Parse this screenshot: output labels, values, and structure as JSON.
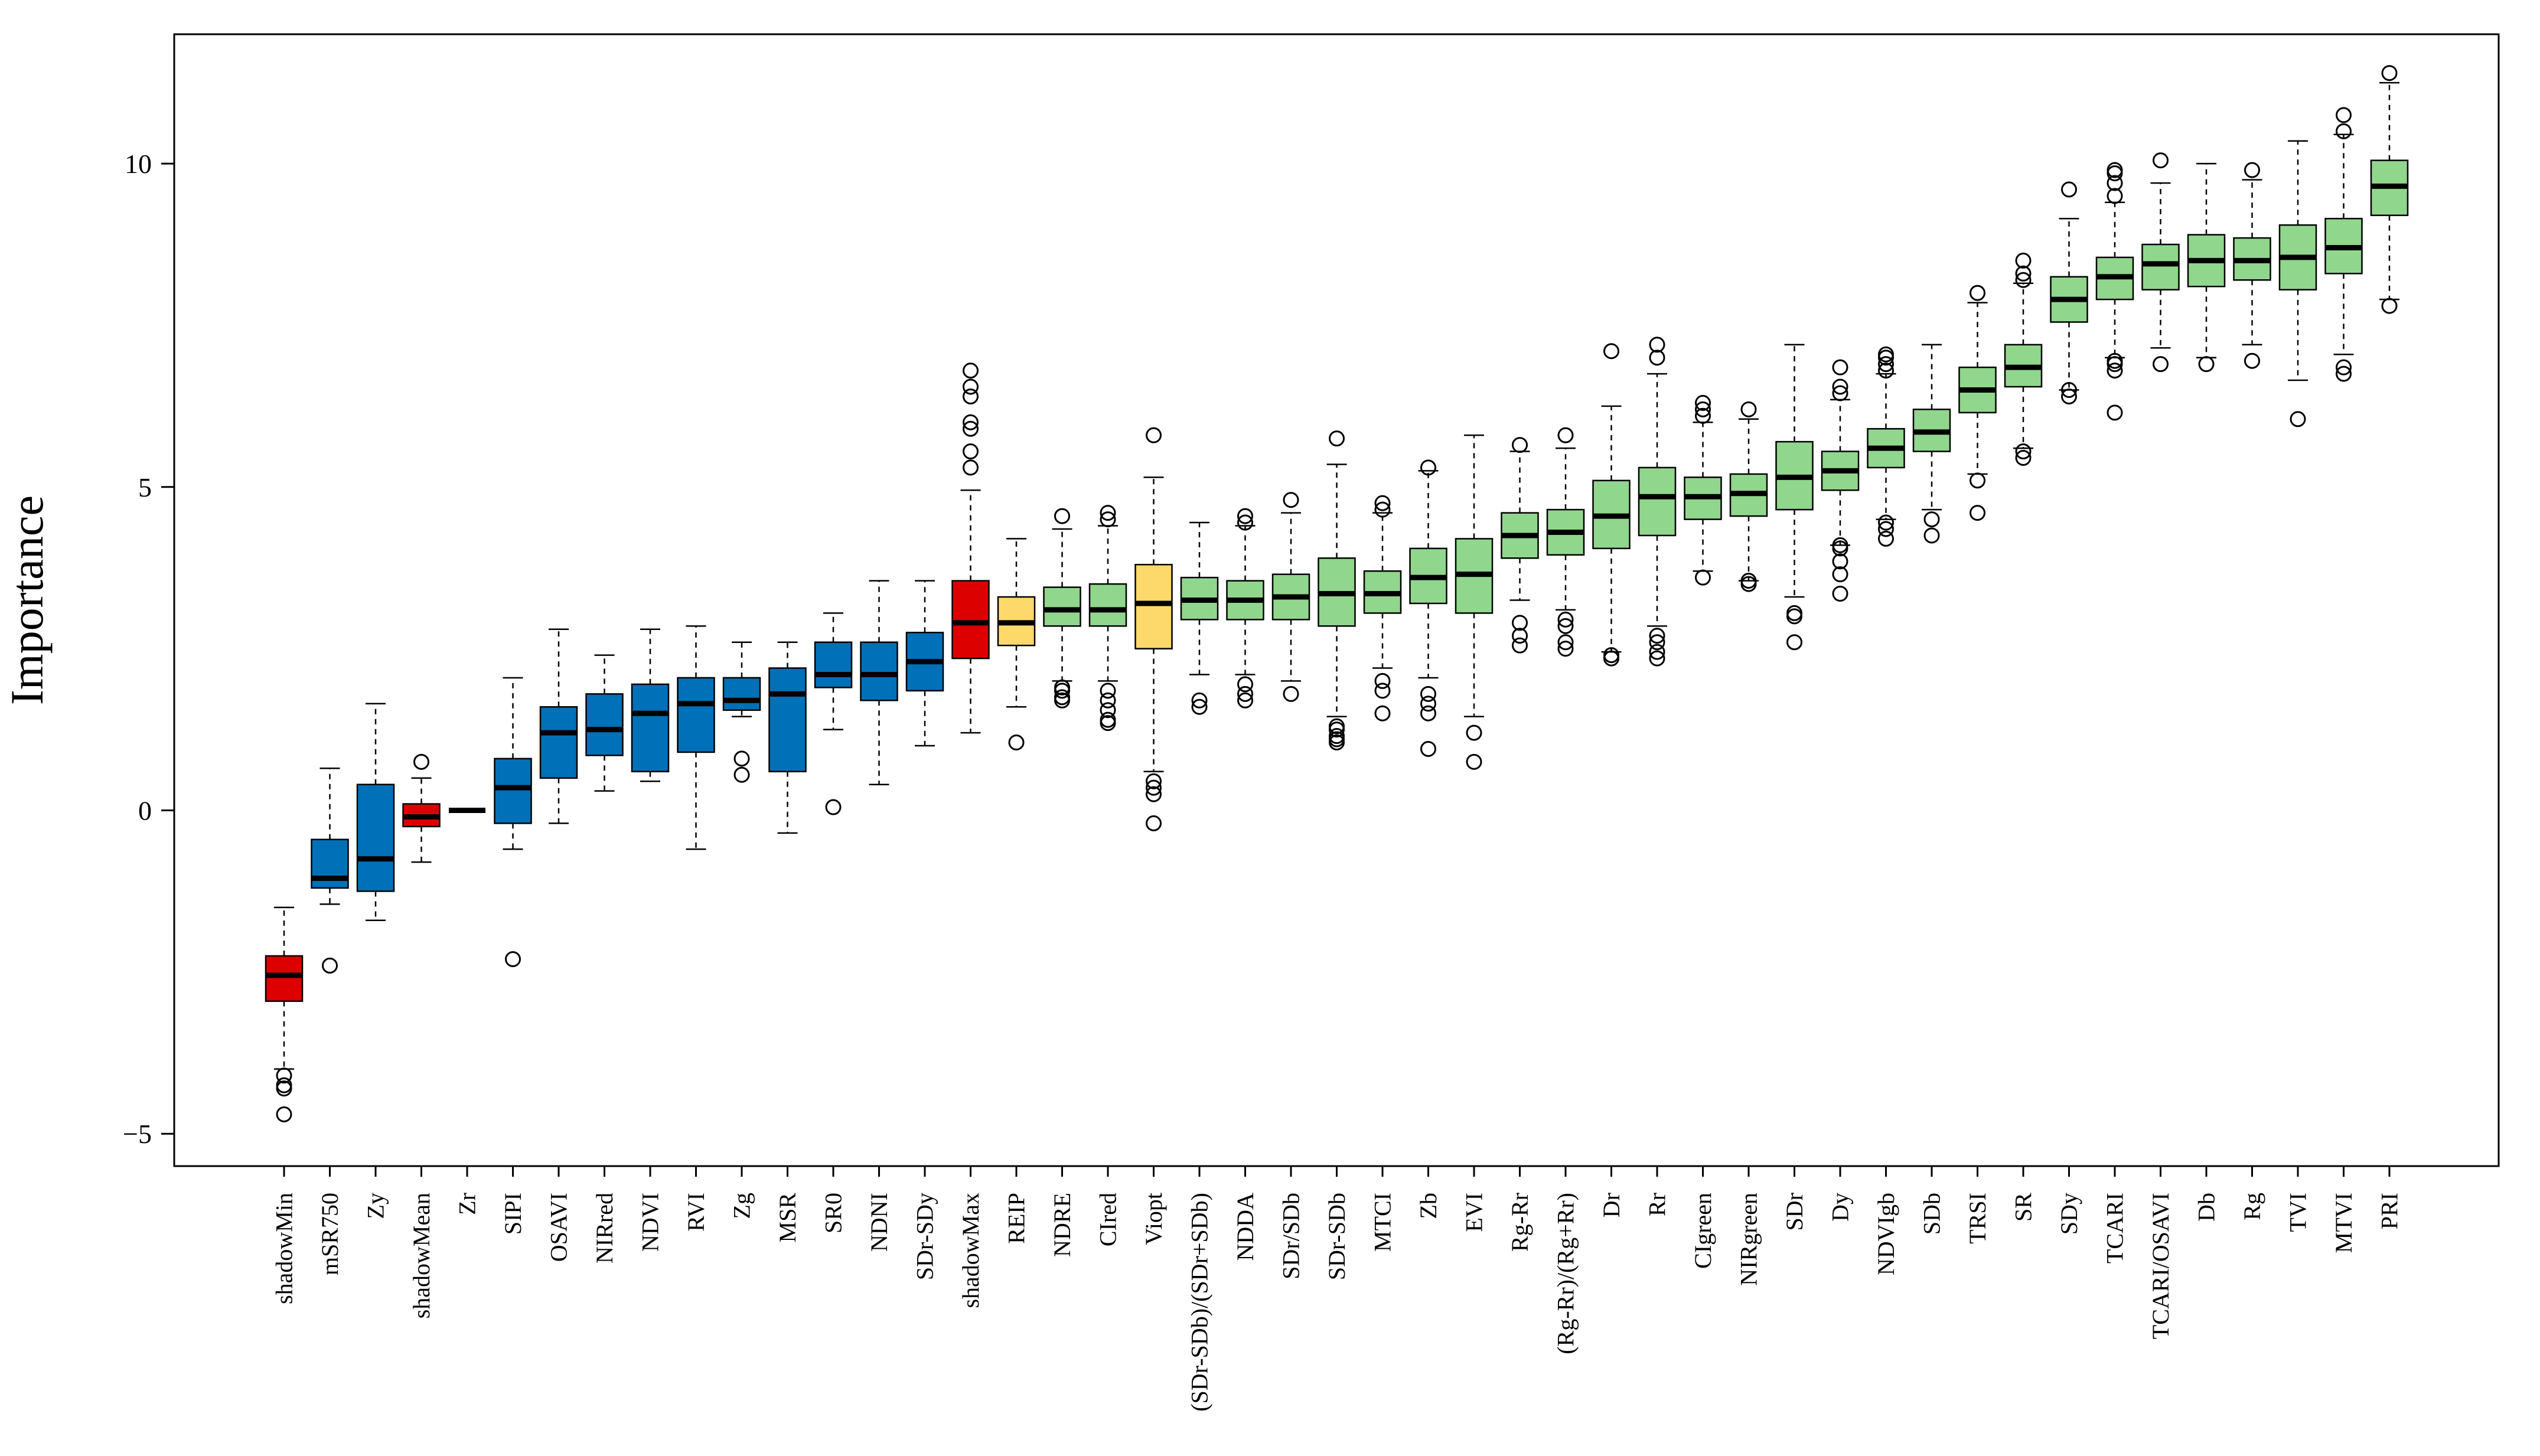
{
  "chart_data": {
    "type": "boxplot",
    "title": "",
    "xlabel": "",
    "ylabel": "Importance",
    "ylim": [
      -5.5,
      12
    ],
    "yticks": [
      -5,
      0,
      5,
      10
    ],
    "ytick_labels": [
      "−5",
      "0",
      "5",
      "10"
    ],
    "legend": "none",
    "grid": false,
    "colors": {
      "shadow": "#dd0000",
      "rejected": "#0070b8",
      "tentative": "#fdd96b",
      "confirmed": "#90d68c",
      "median": "#000000",
      "outline": "#000000"
    },
    "boxes": [
      {
        "name": "shadowMin",
        "group": "shadow",
        "q1": -2.95,
        "median": -2.55,
        "q3": -2.25,
        "lo": -4.0,
        "hi": -1.5,
        "outliers": [
          -4.1,
          -4.25,
          -4.3,
          -4.7
        ]
      },
      {
        "name": "mSR750",
        "group": "rejected",
        "q1": -1.2,
        "median": -1.05,
        "q3": -0.45,
        "lo": -1.45,
        "hi": 0.65,
        "outliers": [
          -2.4
        ]
      },
      {
        "name": "Zy",
        "group": "rejected",
        "q1": -1.25,
        "median": -0.75,
        "q3": 0.4,
        "lo": -1.7,
        "hi": 1.65,
        "outliers": []
      },
      {
        "name": "shadowMean",
        "group": "shadow",
        "q1": -0.25,
        "median": -0.1,
        "q3": 0.1,
        "lo": -0.8,
        "hi": 0.5,
        "outliers": [
          0.75
        ]
      },
      {
        "name": "Zr",
        "group": "rejected",
        "q1": 0.0,
        "median": 0.0,
        "q3": 0.0,
        "lo": 0.0,
        "hi": 0.0,
        "outliers": []
      },
      {
        "name": "SIPI",
        "group": "rejected",
        "q1": -0.2,
        "median": 0.35,
        "q3": 0.8,
        "lo": -0.6,
        "hi": 2.05,
        "outliers": [
          -2.3
        ]
      },
      {
        "name": "OSAVI",
        "group": "rejected",
        "q1": 0.5,
        "median": 1.2,
        "q3": 1.6,
        "lo": -0.2,
        "hi": 2.8,
        "outliers": []
      },
      {
        "name": "NIRred",
        "group": "rejected",
        "q1": 0.85,
        "median": 1.25,
        "q3": 1.8,
        "lo": 0.3,
        "hi": 2.4,
        "outliers": []
      },
      {
        "name": "NDVI",
        "group": "rejected",
        "q1": 0.6,
        "median": 1.5,
        "q3": 1.95,
        "lo": 0.45,
        "hi": 2.8,
        "outliers": []
      },
      {
        "name": "RVI",
        "group": "rejected",
        "q1": 0.9,
        "median": 1.65,
        "q3": 2.05,
        "lo": -0.6,
        "hi": 2.85,
        "outliers": []
      },
      {
        "name": "Zg",
        "group": "rejected",
        "q1": 1.55,
        "median": 1.7,
        "q3": 2.05,
        "lo": 1.45,
        "hi": 2.6,
        "outliers": [
          0.55,
          0.8
        ]
      },
      {
        "name": "MSR",
        "group": "rejected",
        "q1": 0.6,
        "median": 1.8,
        "q3": 2.2,
        "lo": -0.35,
        "hi": 2.6,
        "outliers": []
      },
      {
        "name": "SR0",
        "group": "rejected",
        "q1": 1.9,
        "median": 2.1,
        "q3": 2.6,
        "lo": 1.25,
        "hi": 3.05,
        "outliers": [
          0.05
        ]
      },
      {
        "name": "NDNI",
        "group": "rejected",
        "q1": 1.7,
        "median": 2.1,
        "q3": 2.6,
        "lo": 0.4,
        "hi": 3.55,
        "outliers": []
      },
      {
        "name": "SDr-SDy",
        "group": "rejected",
        "q1": 1.85,
        "median": 2.3,
        "q3": 2.75,
        "lo": 1.0,
        "hi": 3.55,
        "outliers": []
      },
      {
        "name": "shadowMax",
        "group": "shadow",
        "q1": 2.35,
        "median": 2.9,
        "q3": 3.55,
        "lo": 1.2,
        "hi": 4.95,
        "outliers": [
          5.3,
          5.55,
          5.9,
          6.0,
          6.4,
          6.55,
          6.8
        ]
      },
      {
        "name": "REIP",
        "group": "tentative",
        "q1": 2.55,
        "median": 2.9,
        "q3": 3.3,
        "lo": 1.6,
        "hi": 4.2,
        "outliers": [
          1.05
        ]
      },
      {
        "name": "NDRE",
        "group": "confirmed",
        "q1": 2.85,
        "median": 3.1,
        "q3": 3.45,
        "lo": 2.0,
        "hi": 4.35,
        "outliers": [
          1.7,
          1.75,
          1.85,
          1.9,
          4.55
        ]
      },
      {
        "name": "CIred",
        "group": "confirmed",
        "q1": 2.85,
        "median": 3.1,
        "q3": 3.5,
        "lo": 2.0,
        "hi": 4.4,
        "outliers": [
          1.35,
          1.4,
          1.55,
          1.7,
          1.85,
          4.5,
          4.6
        ]
      },
      {
        "name": "Viopt",
        "group": "tentative",
        "q1": 2.5,
        "median": 3.2,
        "q3": 3.8,
        "lo": 0.6,
        "hi": 5.15,
        "outliers": [
          -0.2,
          0.25,
          0.35,
          0.45,
          5.8
        ]
      },
      {
        "name": "(SDr-SDb)/(SDr+SDb)",
        "group": "confirmed",
        "q1": 2.95,
        "median": 3.25,
        "q3": 3.6,
        "lo": 2.1,
        "hi": 4.45,
        "outliers": [
          1.6,
          1.7
        ]
      },
      {
        "name": "NDDA",
        "group": "confirmed",
        "q1": 2.95,
        "median": 3.25,
        "q3": 3.55,
        "lo": 2.1,
        "hi": 4.4,
        "outliers": [
          1.7,
          1.8,
          1.95,
          4.45,
          4.55
        ]
      },
      {
        "name": "SDr/SDb",
        "group": "confirmed",
        "q1": 2.95,
        "median": 3.3,
        "q3": 3.65,
        "lo": 2.0,
        "hi": 4.6,
        "outliers": [
          1.8,
          4.8
        ]
      },
      {
        "name": "SDr-SDb",
        "group": "confirmed",
        "q1": 2.85,
        "median": 3.35,
        "q3": 3.9,
        "lo": 1.45,
        "hi": 5.35,
        "outliers": [
          1.05,
          1.1,
          1.15,
          1.25,
          1.3,
          5.75
        ]
      },
      {
        "name": "MTCI",
        "group": "confirmed",
        "q1": 3.05,
        "median": 3.35,
        "q3": 3.7,
        "lo": 2.2,
        "hi": 4.6,
        "outliers": [
          1.5,
          1.85,
          2.0,
          4.65,
          4.75
        ]
      },
      {
        "name": "Zb",
        "group": "confirmed",
        "q1": 3.2,
        "median": 3.6,
        "q3": 4.05,
        "lo": 2.05,
        "hi": 5.25,
        "outliers": [
          0.95,
          1.5,
          1.65,
          1.8,
          5.3
        ]
      },
      {
        "name": "EVI",
        "group": "confirmed",
        "q1": 3.05,
        "median": 3.65,
        "q3": 4.2,
        "lo": 1.45,
        "hi": 5.8,
        "outliers": [
          0.75,
          1.2
        ]
      },
      {
        "name": "Rg-Rr",
        "group": "confirmed",
        "q1": 3.9,
        "median": 4.25,
        "q3": 4.6,
        "lo": 3.25,
        "hi": 5.55,
        "outliers": [
          2.55,
          2.7,
          2.9,
          5.65
        ]
      },
      {
        "name": "(Rg-Rr)/(Rg+Rr)",
        "group": "confirmed",
        "q1": 3.95,
        "median": 4.3,
        "q3": 4.65,
        "lo": 3.1,
        "hi": 5.6,
        "outliers": [
          2.5,
          2.6,
          2.85,
          2.95,
          5.8
        ]
      },
      {
        "name": "Dr",
        "group": "confirmed",
        "q1": 4.05,
        "median": 4.55,
        "q3": 5.1,
        "lo": 2.45,
        "hi": 6.25,
        "outliers": [
          2.35,
          2.4,
          7.1
        ]
      },
      {
        "name": "Rr",
        "group": "confirmed",
        "q1": 4.25,
        "median": 4.85,
        "q3": 5.3,
        "lo": 2.85,
        "hi": 6.75,
        "outliers": [
          2.35,
          2.45,
          2.6,
          2.7,
          7.0,
          7.2
        ]
      },
      {
        "name": "CIgreen",
        "group": "confirmed",
        "q1": 4.5,
        "median": 4.85,
        "q3": 5.15,
        "lo": 3.7,
        "hi": 6.0,
        "outliers": [
          3.6,
          6.1,
          6.2,
          6.3
        ]
      },
      {
        "name": "NIRgreen",
        "group": "confirmed",
        "q1": 4.55,
        "median": 4.9,
        "q3": 5.2,
        "lo": 3.55,
        "hi": 6.05,
        "outliers": [
          3.5,
          3.55,
          6.2
        ]
      },
      {
        "name": "SDr",
        "group": "confirmed",
        "q1": 4.65,
        "median": 5.15,
        "q3": 5.7,
        "lo": 3.3,
        "hi": 7.2,
        "outliers": [
          2.6,
          3.0,
          3.05
        ]
      },
      {
        "name": "Dy",
        "group": "confirmed",
        "q1": 4.95,
        "median": 5.25,
        "q3": 5.55,
        "lo": 4.1,
        "hi": 6.35,
        "outliers": [
          3.35,
          3.65,
          3.85,
          4.05,
          4.1,
          6.45,
          6.55,
          6.85
        ]
      },
      {
        "name": "NDVIgb",
        "group": "confirmed",
        "q1": 5.3,
        "median": 5.6,
        "q3": 5.9,
        "lo": 4.5,
        "hi": 6.75,
        "outliers": [
          4.2,
          4.35,
          4.45,
          6.8,
          6.9,
          7.0,
          7.05
        ]
      },
      {
        "name": "SDb",
        "group": "confirmed",
        "q1": 5.55,
        "median": 5.85,
        "q3": 6.2,
        "lo": 4.65,
        "hi": 7.2,
        "outliers": [
          4.25,
          4.5
        ]
      },
      {
        "name": "TRSI",
        "group": "confirmed",
        "q1": 6.15,
        "median": 6.5,
        "q3": 6.85,
        "lo": 5.2,
        "hi": 7.85,
        "outliers": [
          4.6,
          5.1,
          8.0
        ]
      },
      {
        "name": "SR",
        "group": "confirmed",
        "q1": 6.55,
        "median": 6.85,
        "q3": 7.2,
        "lo": 5.6,
        "hi": 8.15,
        "outliers": [
          5.45,
          5.55,
          8.2,
          8.3,
          8.5
        ]
      },
      {
        "name": "SDy",
        "group": "confirmed",
        "q1": 7.55,
        "median": 7.9,
        "q3": 8.25,
        "lo": 6.5,
        "hi": 9.15,
        "outliers": [
          6.4,
          6.5,
          9.6
        ]
      },
      {
        "name": "TCARI",
        "group": "confirmed",
        "q1": 7.9,
        "median": 8.25,
        "q3": 8.55,
        "lo": 7.0,
        "hi": 9.4,
        "outliers": [
          6.15,
          6.8,
          6.9,
          6.95,
          9.5,
          9.7,
          9.85,
          9.9
        ]
      },
      {
        "name": "TCARI/OSAVI",
        "group": "confirmed",
        "q1": 8.05,
        "median": 8.45,
        "q3": 8.75,
        "lo": 7.15,
        "hi": 9.7,
        "outliers": [
          6.9,
          10.05
        ]
      },
      {
        "name": "Db",
        "group": "confirmed",
        "q1": 8.1,
        "median": 8.5,
        "q3": 8.9,
        "lo": 7.0,
        "hi": 10.0,
        "outliers": [
          6.9
        ]
      },
      {
        "name": "Rg",
        "group": "confirmed",
        "q1": 8.2,
        "median": 8.5,
        "q3": 8.85,
        "lo": 7.2,
        "hi": 9.75,
        "outliers": [
          6.95,
          9.9
        ]
      },
      {
        "name": "TVI",
        "group": "confirmed",
        "q1": 8.05,
        "median": 8.55,
        "q3": 9.05,
        "lo": 6.65,
        "hi": 10.35,
        "outliers": [
          6.05
        ]
      },
      {
        "name": "MTVI",
        "group": "confirmed",
        "q1": 8.3,
        "median": 8.7,
        "q3": 9.15,
        "lo": 7.05,
        "hi": 10.45,
        "outliers": [
          6.75,
          6.85,
          10.5,
          10.75
        ]
      },
      {
        "name": "PRI",
        "group": "confirmed",
        "q1": 9.2,
        "median": 9.65,
        "q3": 10.05,
        "lo": 7.9,
        "hi": 11.25,
        "outliers": [
          7.8,
          11.4
        ]
      }
    ]
  }
}
